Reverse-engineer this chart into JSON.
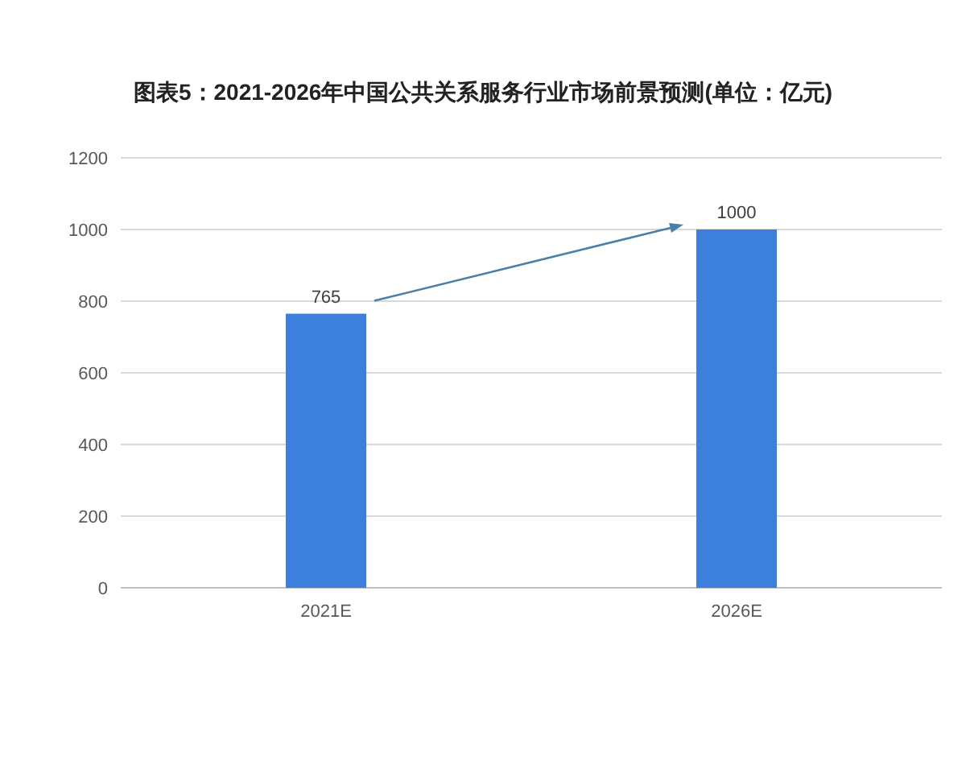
{
  "chart_data": {
    "type": "bar",
    "title": "图表5：2021-2026年中国公共关系服务行业市场前景预测(单位：亿元)",
    "categories": [
      "2021E",
      "2026E"
    ],
    "values": [
      765,
      1000
    ],
    "color": "#3d7fdd",
    "ylim": [
      0,
      1200
    ],
    "yticks": [
      0,
      200,
      400,
      600,
      800,
      1000,
      1200
    ],
    "grid": "y",
    "data_labels": true
  }
}
